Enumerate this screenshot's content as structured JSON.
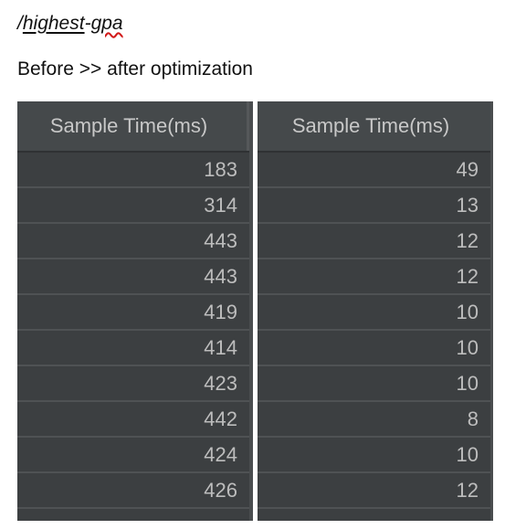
{
  "route": {
    "slash": "/",
    "part1": "highest",
    "dash": "-",
    "part2": "gpa"
  },
  "caption": "Before >> after optimization",
  "before_table": {
    "header": "Sample Time(ms)",
    "rows": [
      "183",
      "314",
      "443",
      "443",
      "419",
      "414",
      "423",
      "442",
      "424",
      "426"
    ]
  },
  "after_table": {
    "header": "Sample Time(ms)",
    "rows": [
      "49",
      "13",
      "12",
      "12",
      "10",
      "10",
      "10",
      "8",
      "10",
      "12"
    ]
  },
  "colors": {
    "table_background": "#3c3f41",
    "header_background": "#45494b",
    "cell_text": "#bdbdbd",
    "spellcheck_underline": "#d21a1a"
  }
}
